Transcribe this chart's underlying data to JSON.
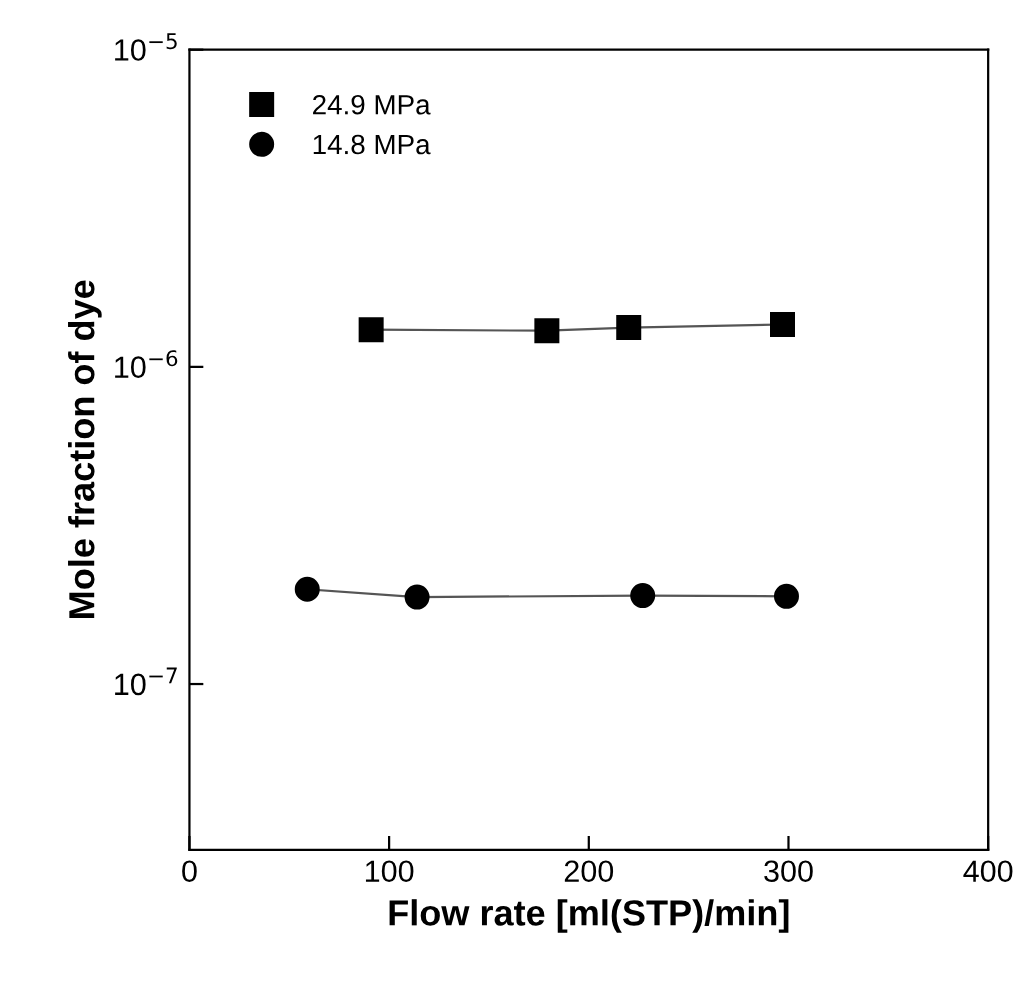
{
  "chart_data": {
    "type": "line",
    "xlabel": "Flow rate [ml(STP)/min]",
    "ylabel": "Mole fraction of dye",
    "xlim": [
      0,
      400
    ],
    "xticks": [
      0,
      100,
      200,
      300,
      400
    ],
    "ylim": [
      3e-08,
      1e-05
    ],
    "yticks": [
      {
        "value": 1e-05,
        "label": "10$^{−5}$"
      },
      {
        "value": 1e-06,
        "label": "10$^{−6}$"
      },
      {
        "value": 1e-07,
        "label": "10$^{−7}$"
      }
    ],
    "log": "y",
    "grid": false,
    "legend": "top left",
    "series": [
      {
        "name": "24.9 MPa",
        "color": "#000000",
        "marker": "square",
        "x": [
          91,
          179,
          220,
          297
        ],
        "values": [
          1.31e-06,
          1.3e-06,
          1.33e-06,
          1.36e-06
        ]
      },
      {
        "name": "14.8 MPa",
        "color": "#000000",
        "marker": "circle",
        "x": [
          59,
          114,
          227,
          299
        ],
        "values": [
          1.99e-07,
          1.88e-07,
          1.9e-07,
          1.89e-07
        ]
      }
    ]
  }
}
